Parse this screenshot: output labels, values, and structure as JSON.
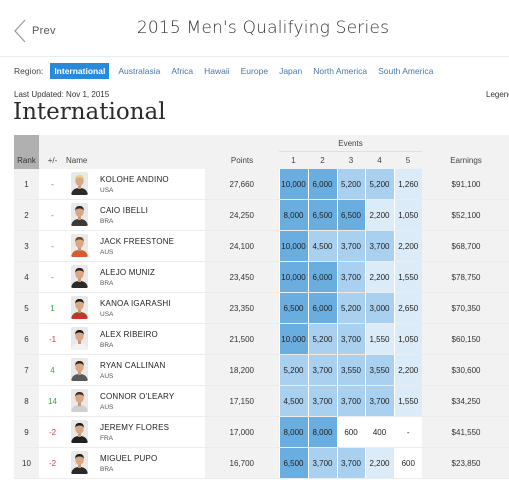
{
  "header": {
    "prev_label": "Prev",
    "title": "2015 Men's Qualifying Series"
  },
  "region": {
    "label": "Region:",
    "items": [
      "International",
      "Australasia",
      "Africa",
      "Hawaii",
      "Europe",
      "Japan",
      "North America",
      "South America"
    ],
    "active": "International"
  },
  "last_updated": "Last Updated: Nov 1, 2015",
  "legend_label": "Legend",
  "region_title": "International",
  "table": {
    "headers": {
      "rank": "Rank",
      "delta": "+/-",
      "name": "Name",
      "points": "Points",
      "events": "Events",
      "earnings": "Earnings",
      "event_numbers": [
        "1",
        "2",
        "3",
        "4",
        "5"
      ]
    },
    "rows": [
      {
        "rank": "1",
        "delta": "-",
        "name": "KOLOHE ANDINO",
        "country": "USA",
        "points": "27,660",
        "events": [
          "10,000",
          "6,000",
          "5,200",
          "5,200",
          "1,260"
        ],
        "earnings": "$91,100"
      },
      {
        "rank": "2",
        "delta": "-",
        "name": "CAIO IBELLI",
        "country": "BRA",
        "points": "24,250",
        "events": [
          "8,000",
          "6,500",
          "6,500",
          "2,200",
          "1,050"
        ],
        "earnings": "$52,100"
      },
      {
        "rank": "3",
        "delta": "-",
        "name": "JACK FREESTONE",
        "country": "AUS",
        "points": "24,100",
        "events": [
          "10,000",
          "4,500",
          "3,700",
          "3,700",
          "2,200"
        ],
        "earnings": "$68,700"
      },
      {
        "rank": "4",
        "delta": "-",
        "name": "ALEJO MUNIZ",
        "country": "BRA",
        "points": "23,450",
        "events": [
          "10,000",
          "6,000",
          "3,700",
          "2,200",
          "1,550"
        ],
        "earnings": "$78,750"
      },
      {
        "rank": "5",
        "delta": "1",
        "name": "KANOA IGARASHI",
        "country": "USA",
        "points": "23,350",
        "events": [
          "6,500",
          "6,000",
          "5,200",
          "3,000",
          "2,650"
        ],
        "earnings": "$70,350"
      },
      {
        "rank": "6",
        "delta": "-1",
        "name": "ALEX RIBEIRO",
        "country": "BRA",
        "points": "21,500",
        "events": [
          "10,000",
          "5,200",
          "3,700",
          "1,550",
          "1,050"
        ],
        "earnings": "$60,150"
      },
      {
        "rank": "7",
        "delta": "4",
        "name": "RYAN CALLINAN",
        "country": "AUS",
        "points": "18,200",
        "events": [
          "5,200",
          "3,700",
          "3,550",
          "3,550",
          "2,200"
        ],
        "earnings": "$30,600"
      },
      {
        "rank": "8",
        "delta": "14",
        "name": "CONNOR O'LEARY",
        "country": "AUS",
        "points": "17,150",
        "events": [
          "4,500",
          "3,700",
          "3,700",
          "3,700",
          "1,550"
        ],
        "earnings": "$34,250"
      },
      {
        "rank": "9",
        "delta": "-2",
        "name": "JEREMY FLORES",
        "country": "FRA",
        "points": "17,000",
        "events": [
          "8,000",
          "8,000",
          "600",
          "400",
          "-"
        ],
        "earnings": "$41,550"
      },
      {
        "rank": "10",
        "delta": "-2",
        "name": "MIGUEL PUPO",
        "country": "BRA",
        "points": "16,700",
        "events": [
          "6,500",
          "3,700",
          "3,700",
          "2,200",
          "600"
        ],
        "earnings": "$23,850"
      }
    ]
  },
  "colors": {
    "accent": "#2a8ad8",
    "link": "#4a78a8",
    "delta_up": "#3aa53a",
    "delta_down": "#d84040",
    "event_tier_high": "#6aaee0",
    "event_tier_mid": "#a9d0ef",
    "event_tier_low": "#dcebf8",
    "event_tier_none": "#ffffff"
  },
  "avatars": [
    {
      "name": "avatar-kolohe-andino",
      "hair": "#e8cf8a",
      "shirt": "#2b2b2b"
    },
    {
      "name": "avatar-caio-ibelli",
      "hair": "#2a2a2a",
      "shirt": "#3a3a3a"
    },
    {
      "name": "avatar-jack-freestone",
      "hair": "#6b4a2a",
      "shirt": "#d65b2e"
    },
    {
      "name": "avatar-alejo-muniz",
      "hair": "#2a2018",
      "shirt": "#2b2b2b"
    },
    {
      "name": "avatar-kanoa-igarashi",
      "hair": "#1c1c1c",
      "shirt": "#c3372a"
    },
    {
      "name": "avatar-alex-ribeiro",
      "hair": "#1a1a1a",
      "shirt": "#f2f2f2"
    },
    {
      "name": "avatar-ryan-callinan",
      "hair": "#3a2a1a",
      "shirt": "#5a5a5a"
    },
    {
      "name": "avatar-connor-oleary",
      "hair": "#4a3020",
      "shirt": "#cfcfcf"
    },
    {
      "name": "avatar-jeremy-flores",
      "hair": "#1a1a1a",
      "shirt": "#202020"
    },
    {
      "name": "avatar-miguel-pupo",
      "hair": "#1f1a14",
      "shirt": "#2a2a2a"
    }
  ]
}
